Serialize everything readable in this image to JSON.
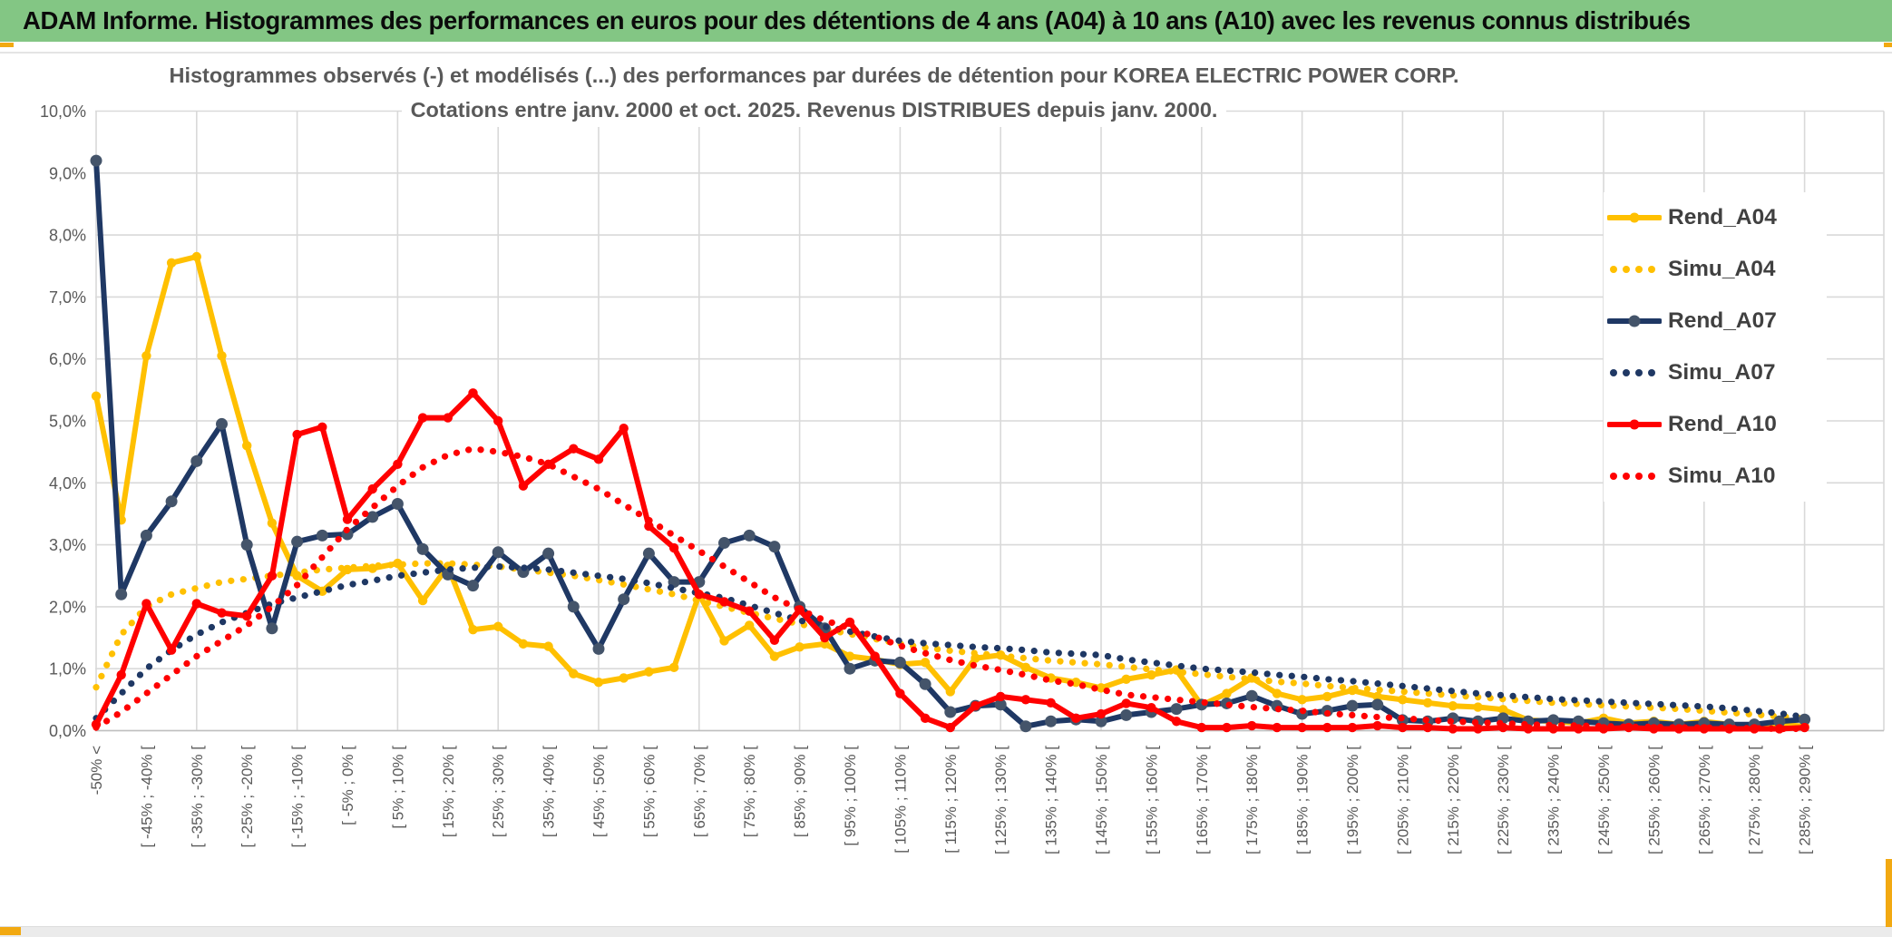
{
  "header": {
    "title": "ADAM Informe. Histogrammes des performances en euros pour des détentions de 4 ans (A04) à 10 ans (A10) avec les revenus connus distribués"
  },
  "chart": {
    "title_line1": "Histogrammes observés (-) et modélisés (...) des performances par durées de détention pour KOREA ELECTRIC POWER CORP.",
    "title_line2": "Cotations entre janv. 2000 et oct. 2025. Revenus DISTRIBUES depuis janv. 2000."
  },
  "colors": {
    "header_green": "#83C684",
    "gold_accent": "#F2A911",
    "series_gold": "#FFC000",
    "series_navy": "#1F3864",
    "navy_marker": "#44546A",
    "series_red": "#FF0000",
    "grid": "#D9D9D9",
    "axis_text": "#595959",
    "title_text": "#595959",
    "legend_text": "#404040"
  },
  "chart_data": {
    "type": "line",
    "title": "Histogrammes observés (-) et modélisés (...) des performances par durées de détention pour KOREA ELECTRIC POWER CORP.",
    "subtitle": "Cotations entre janv. 2000 et oct. 2025. Revenus DISTRIBUES depuis janv. 2000.",
    "ylabel": "",
    "xlabel": "",
    "ylim": [
      0,
      10
    ],
    "grid": true,
    "legend_position": "right",
    "y_tick_labels": [
      "0,0%",
      "1,0%",
      "2,0%",
      "3,0%",
      "4,0%",
      "5,0%",
      "6,0%",
      "7,0%",
      "8,0%",
      "9,0%",
      "10,0%"
    ],
    "categories_count": 69,
    "bin_width_pct": 5,
    "x_label_every": 2,
    "x_tick_labels": [
      "-50% <",
      "[ -45% ; -40% [",
      "[ -35% ; -30% [",
      "[ -25% ; -20% [",
      "[ -15% ; -10% [",
      "[ -5% ; 0% [",
      "[ 5% ; 10% [",
      "[ 15% ; 20% [",
      "[ 25% ; 30% [",
      "[ 35% ; 40% [",
      "[ 45% ; 50% [",
      "[ 55% ; 60% [",
      "[ 65% ; 70% [",
      "[ 75% ; 80% [",
      "[ 85% ; 90% [",
      "[ 95% ; 100% [",
      "[ 105% ; 110% [",
      "[ 115% ; 120% [",
      "[ 125% ; 130% [",
      "[ 135% ; 140% [",
      "[ 145% ; 150% [",
      "[ 155% ; 160% [",
      "[ 165% ; 170% [",
      "[ 175% ; 180% [",
      "[ 185% ; 190% [",
      "[ 195% ; 200% [",
      "[ 205% ; 210% [",
      "[ 215% ; 220% [",
      "[ 225% ; 230% [",
      "[ 235% ; 240% [",
      "[ 245% ; 250% [",
      "[ 255% ; 260% [",
      "[ 265% ; 270% [",
      "[ 275% ; 280% [",
      "[ 285% ; 290% ["
    ],
    "series": [
      {
        "name": "Rend_A04",
        "style": "solid",
        "color": "#FFC000",
        "marker": "#FFC000",
        "values": [
          5.4,
          3.4,
          6.05,
          7.55,
          7.65,
          6.05,
          4.6,
          3.35,
          2.5,
          2.25,
          2.6,
          2.62,
          2.7,
          2.1,
          2.65,
          1.63,
          1.68,
          1.4,
          1.36,
          0.92,
          0.78,
          0.85,
          0.95,
          1.02,
          2.2,
          1.45,
          1.7,
          1.2,
          1.35,
          1.4,
          1.2,
          1.15,
          1.07,
          1.1,
          0.63,
          1.17,
          1.22,
          1.02,
          0.85,
          0.78,
          0.69,
          0.83,
          0.9,
          0.98,
          0.41,
          0.6,
          0.85,
          0.6,
          0.5,
          0.55,
          0.65,
          0.55,
          0.5,
          0.45,
          0.4,
          0.38,
          0.34,
          0.17,
          0.15,
          0.12,
          0.2,
          0.12,
          0.15,
          0.1,
          0.15,
          0.1,
          0.08,
          0.1,
          0.07
        ]
      },
      {
        "name": "Simu_A04",
        "style": "dotted",
        "color": "#FFC000",
        "values": [
          0.7,
          1.55,
          2.0,
          2.2,
          2.3,
          2.4,
          2.45,
          2.5,
          2.55,
          2.6,
          2.63,
          2.66,
          2.68,
          2.7,
          2.7,
          2.68,
          2.65,
          2.6,
          2.55,
          2.5,
          2.43,
          2.36,
          2.28,
          2.2,
          2.1,
          2.0,
          1.9,
          1.81,
          1.72,
          1.64,
          1.56,
          1.48,
          1.4,
          1.34,
          1.29,
          1.25,
          1.21,
          1.17,
          1.13,
          1.1,
          1.07,
          1.03,
          0.99,
          0.95,
          0.91,
          0.87,
          0.83,
          0.79,
          0.76,
          0.72,
          0.69,
          0.66,
          0.63,
          0.6,
          0.57,
          0.54,
          0.51,
          0.48,
          0.45,
          0.43,
          0.41,
          0.39,
          0.37,
          0.35,
          0.32,
          0.29,
          0.26,
          0.23,
          0.2
        ]
      },
      {
        "name": "Rend_A07",
        "style": "solid",
        "color": "#1F3864",
        "marker": "#44546A",
        "values": [
          9.2,
          2.2,
          3.15,
          3.7,
          4.35,
          4.95,
          3.0,
          1.65,
          3.05,
          3.15,
          3.17,
          3.45,
          3.66,
          2.93,
          2.52,
          2.34,
          2.88,
          2.56,
          2.86,
          2.0,
          1.32,
          2.12,
          2.86,
          2.4,
          2.4,
          3.03,
          3.15,
          2.97,
          2.0,
          1.65,
          1.0,
          1.13,
          1.1,
          0.75,
          0.3,
          0.4,
          0.42,
          0.07,
          0.15,
          0.18,
          0.15,
          0.25,
          0.3,
          0.35,
          0.42,
          0.44,
          0.56,
          0.4,
          0.27,
          0.32,
          0.4,
          0.42,
          0.17,
          0.15,
          0.2,
          0.15,
          0.2,
          0.15,
          0.17,
          0.15,
          0.12,
          0.1,
          0.12,
          0.1,
          0.12,
          0.1,
          0.1,
          0.15,
          0.18
        ]
      },
      {
        "name": "Simu_A07",
        "style": "dotted",
        "color": "#1F3864",
        "values": [
          0.2,
          0.6,
          1.0,
          1.3,
          1.55,
          1.75,
          1.9,
          2.05,
          2.15,
          2.25,
          2.35,
          2.42,
          2.5,
          2.55,
          2.6,
          2.63,
          2.65,
          2.63,
          2.6,
          2.55,
          2.5,
          2.45,
          2.38,
          2.3,
          2.22,
          2.14,
          2.02,
          1.9,
          1.78,
          1.68,
          1.6,
          1.52,
          1.45,
          1.41,
          1.38,
          1.35,
          1.33,
          1.3,
          1.26,
          1.24,
          1.22,
          1.15,
          1.1,
          1.05,
          1.0,
          0.97,
          0.94,
          0.9,
          0.87,
          0.83,
          0.8,
          0.76,
          0.72,
          0.68,
          0.64,
          0.6,
          0.57,
          0.54,
          0.51,
          0.49,
          0.47,
          0.45,
          0.43,
          0.41,
          0.39,
          0.36,
          0.32,
          0.28,
          0.22
        ]
      },
      {
        "name": "Rend_A10",
        "style": "solid",
        "color": "#FF0000",
        "marker": "#FF0000",
        "values": [
          0.1,
          0.9,
          2.05,
          1.3,
          2.05,
          1.9,
          1.85,
          2.5,
          4.78,
          4.9,
          3.41,
          3.9,
          4.3,
          5.05,
          5.05,
          5.45,
          5.0,
          3.95,
          4.3,
          4.55,
          4.38,
          4.88,
          3.3,
          2.95,
          2.2,
          2.08,
          1.93,
          1.46,
          1.95,
          1.5,
          1.75,
          1.2,
          0.6,
          0.2,
          0.05,
          0.4,
          0.55,
          0.5,
          0.45,
          0.2,
          0.27,
          0.44,
          0.37,
          0.15,
          0.05,
          0.05,
          0.08,
          0.05,
          0.05,
          0.05,
          0.05,
          0.08,
          0.05,
          0.05,
          0.03,
          0.03,
          0.05,
          0.03,
          0.03,
          0.03,
          0.03,
          0.05,
          0.03,
          0.03,
          0.03,
          0.03,
          0.03,
          0.03,
          0.05
        ]
      },
      {
        "name": "Simu_A10",
        "style": "dotted",
        "color": "#FF0000",
        "values": [
          0.05,
          0.3,
          0.6,
          0.9,
          1.2,
          1.45,
          1.7,
          2.0,
          2.35,
          2.8,
          3.25,
          3.6,
          3.95,
          4.25,
          4.45,
          4.55,
          4.5,
          4.42,
          4.3,
          4.1,
          3.9,
          3.65,
          3.4,
          3.15,
          2.9,
          2.65,
          2.4,
          2.15,
          1.95,
          1.78,
          1.65,
          1.52,
          1.37,
          1.25,
          1.14,
          1.05,
          0.98,
          0.9,
          0.81,
          0.75,
          0.66,
          0.58,
          0.54,
          0.5,
          0.46,
          0.42,
          0.38,
          0.35,
          0.32,
          0.28,
          0.25,
          0.22,
          0.2,
          0.17,
          0.15,
          0.13,
          0.12,
          0.1,
          0.09,
          0.08,
          0.07,
          0.06,
          0.06,
          0.05,
          0.05,
          0.04,
          0.04,
          0.03,
          0.03
        ]
      }
    ]
  }
}
